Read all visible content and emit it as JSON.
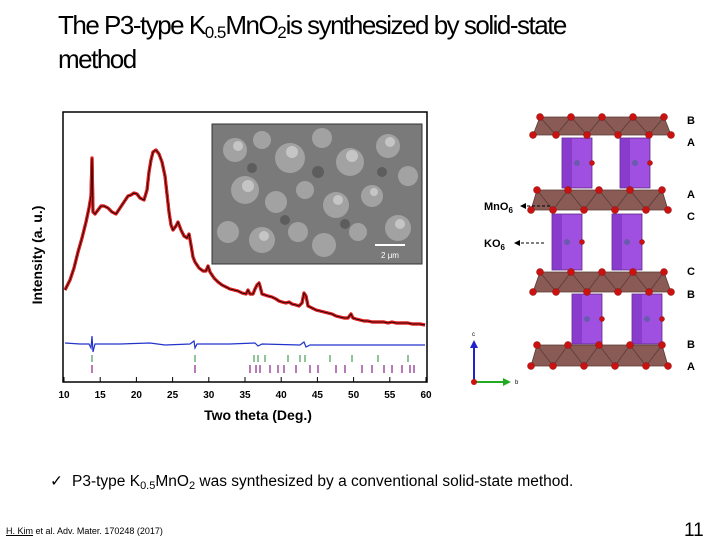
{
  "slide": {
    "title_prefix": "The P3-type K",
    "title_sub1": "0.5",
    "title_mid": "Mn",
    "title_O": "O",
    "title_sub2": "2",
    "title_suffix": "is synthesized by solid-state",
    "title_line2": "method",
    "caption_check": "✓",
    "caption_prefix": "P3-type K",
    "caption_sub1": "0.5",
    "caption_mid": "Mn",
    "caption_O": "O",
    "caption_sub2": "2",
    "caption_suffix": " was synthesized by a conventional solid-state method.",
    "reference_name": "H. Kim",
    "reference_rest": " et al. Adv. Mater. 170248 (2017)",
    "slide_number": "11"
  },
  "xrd_plot": {
    "ylabel": "Intensity (a. u.)",
    "xlabel": "Two theta (Deg.)",
    "xticks": [
      "10",
      "15",
      "20",
      "25",
      "30",
      "35",
      "40",
      "45",
      "50",
      "55",
      "60"
    ],
    "sem_scale_label": "2 μm"
  },
  "structure": {
    "label_mno6": "MnO",
    "label_mno6_sub": "6",
    "label_ko6": "KO",
    "label_ko6_sub": "6",
    "stacking": [
      "B",
      "A",
      "A",
      "C",
      "C",
      "B",
      "B",
      "A"
    ],
    "axis_c": "c",
    "axis_b": "b"
  },
  "colors": {
    "observed_line": "#e02020",
    "fit_line": "#000000",
    "difference_line": "#2233cc",
    "tick_green": "#228833",
    "tick_purple": "#882288",
    "octahedron_brown": "#8a5a55",
    "octahedron_purple": "#a050e0",
    "oxygen_red": "#cc1111"
  }
}
